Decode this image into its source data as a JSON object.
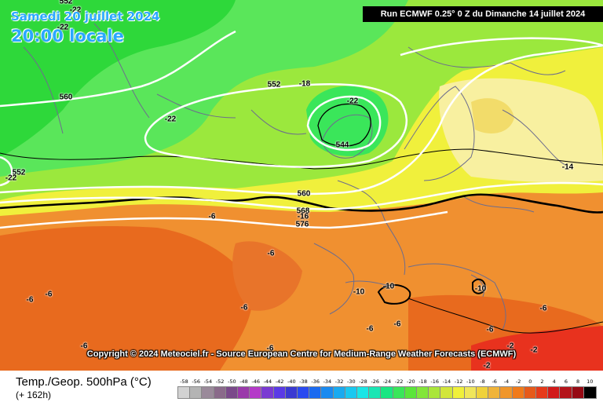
{
  "header": {
    "date_label": "Samedi 20 juillet 2024",
    "time_label": "20:00 locale",
    "run_label": "Run ECMWF 0.25° 0 Z du Dimanche 14 juillet 2024"
  },
  "copyright": "Copyright © 2024 Meteociel.fr - Source European Centre for Medium-Range Weather Forecasts (ECMWF)",
  "footer": {
    "parameter": "Temp./Geop. 500hPa (°C)",
    "forecast_hour": "(+ 162h)"
  },
  "map_labels": {
    "geop_560_west": "560",
    "geop_552_top": "552",
    "geop_552_north": "552",
    "geop_544": "544",
    "geop_552_left": "552",
    "geop_560_center": "560",
    "geop_568": "568",
    "geop_576": "576",
    "t_m22_top": "-22",
    "t_m22_north": "-22",
    "t_m22_center": "-22",
    "t_m22_low": "-22",
    "t_m22_left": "-22",
    "t_m18": "-18",
    "t_m16": "-16",
    "t_m14": "-14",
    "t_m10_a": "-10",
    "t_m10_b": "-10",
    "t_m10_c": "-10",
    "t_m6_a": "-6",
    "t_m6_b": "-6",
    "t_m6_c": "-6",
    "t_m6_d": "-6",
    "t_m6_e": "-6",
    "t_m6_f": "-6",
    "t_m6_g": "-6",
    "t_m6_h": "-6",
    "t_m6_i": "-6",
    "t_m6_j": "-6",
    "t_m6_k": "-6",
    "t_m2_a": "-2",
    "t_m2_b": "-2",
    "t_m2_c": "-2"
  },
  "legend": {
    "ticks": [
      "-58",
      "-56",
      "-54",
      "-52",
      "-50",
      "-48",
      "-46",
      "-44",
      "-42",
      "-40",
      "-38",
      "-36",
      "-34",
      "-32",
      "-30",
      "-28",
      "-26",
      "-24",
      "-22",
      "-20",
      "-18",
      "-16",
      "-14",
      "-12",
      "-10",
      "-8",
      "-6",
      "-4",
      "-2",
      "0",
      "2",
      "4",
      "6",
      "8",
      "10"
    ],
    "colors": [
      "#d2d2d2",
      "#b4b4b4",
      "#9a8a9a",
      "#8a6a8a",
      "#7a4a8a",
      "#9a3aaa",
      "#b43ac8",
      "#7a3ad2",
      "#5a3ae6",
      "#3a3ad2",
      "#2a4af0",
      "#1a6af0",
      "#1a8af0",
      "#1aaaf0",
      "#1ac8f0",
      "#1ae6e6",
      "#1ae6b4",
      "#1ae682",
      "#3ae65a",
      "#5ae63a",
      "#82e63a",
      "#aae63a",
      "#d2e63a",
      "#f0f03a",
      "#f0e65a",
      "#f0d23a",
      "#f0b43a",
      "#f0962a",
      "#f07a1a",
      "#e65a1a",
      "#e63a1a",
      "#d21a1a",
      "#b4141a",
      "#960a14",
      "#000000"
    ]
  },
  "colors": {
    "cold": "#2ed83a",
    "cool": "#9be83d",
    "mild": "#f0f03c",
    "pale": "#f8f0a0",
    "warm": "#f09030",
    "hot": "#e86a1e",
    "red": "#e8321e",
    "runbox": "#000000",
    "title": "#2aa8ff"
  }
}
